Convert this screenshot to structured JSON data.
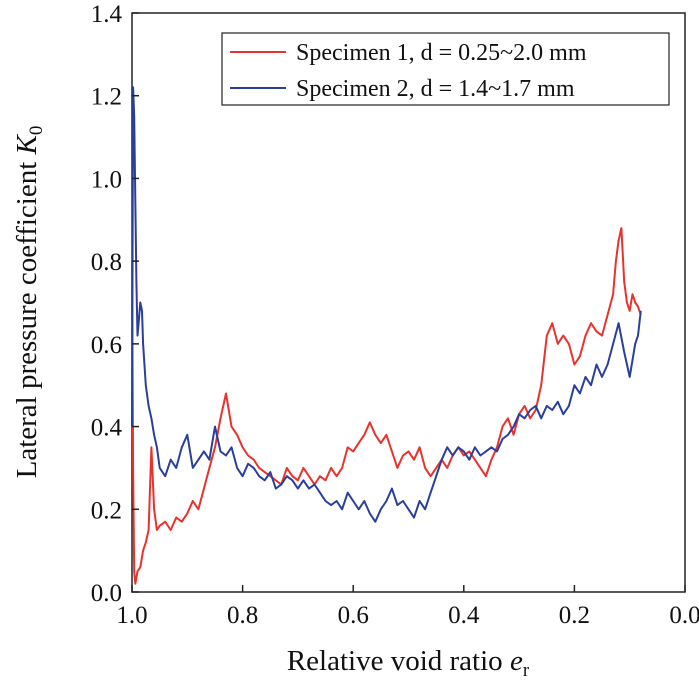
{
  "chart_data": {
    "type": "line",
    "title": "",
    "xlabel": "Relative void ratio",
    "xlabel_symbol": "e",
    "xlabel_subscript": "r",
    "ylabel": "Lateral pressure coefficient",
    "ylabel_symbol": "K",
    "ylabel_subscript": "0",
    "xlim": [
      1.0,
      0.0
    ],
    "ylim": [
      0.0,
      1.4
    ],
    "x_reversed": true,
    "grid": false,
    "legend_position": "top-right",
    "xticks": [
      1.0,
      0.8,
      0.6,
      0.4,
      0.2,
      0.0
    ],
    "xtick_labels": [
      "1.0",
      "0.8",
      "0.6",
      "0.4",
      "0.2",
      "0.0"
    ],
    "yticks": [
      0.0,
      0.2,
      0.4,
      0.6,
      0.8,
      1.0,
      1.2,
      1.4
    ],
    "ytick_labels": [
      "0.0",
      "0.2",
      "0.4",
      "0.6",
      "0.8",
      "1.0",
      "1.2",
      "1.4"
    ],
    "series": [
      {
        "name": "Specimen 1, d = 0.25~2.0 mm",
        "color": "#e8322d",
        "x": [
          1.0,
          0.998,
          0.996,
          0.994,
          0.99,
          0.985,
          0.98,
          0.975,
          0.97,
          0.965,
          0.96,
          0.955,
          0.95,
          0.94,
          0.93,
          0.92,
          0.91,
          0.9,
          0.89,
          0.88,
          0.87,
          0.86,
          0.85,
          0.84,
          0.83,
          0.82,
          0.81,
          0.8,
          0.79,
          0.78,
          0.77,
          0.76,
          0.75,
          0.74,
          0.73,
          0.72,
          0.71,
          0.7,
          0.69,
          0.68,
          0.67,
          0.66,
          0.65,
          0.64,
          0.63,
          0.62,
          0.61,
          0.6,
          0.59,
          0.58,
          0.57,
          0.56,
          0.55,
          0.54,
          0.53,
          0.52,
          0.51,
          0.5,
          0.49,
          0.48,
          0.47,
          0.46,
          0.45,
          0.44,
          0.43,
          0.42,
          0.41,
          0.4,
          0.39,
          0.38,
          0.37,
          0.36,
          0.35,
          0.34,
          0.33,
          0.32,
          0.31,
          0.3,
          0.29,
          0.28,
          0.27,
          0.26,
          0.25,
          0.24,
          0.23,
          0.22,
          0.21,
          0.2,
          0.19,
          0.18,
          0.17,
          0.16,
          0.15,
          0.14,
          0.13,
          0.125,
          0.12,
          0.115,
          0.11,
          0.105,
          0.1,
          0.095,
          0.09,
          0.085,
          0.08
        ],
        "values": [
          0.8,
          0.3,
          0.05,
          0.02,
          0.05,
          0.06,
          0.1,
          0.12,
          0.15,
          0.35,
          0.2,
          0.15,
          0.16,
          0.17,
          0.15,
          0.18,
          0.17,
          0.19,
          0.22,
          0.2,
          0.25,
          0.3,
          0.35,
          0.42,
          0.48,
          0.4,
          0.38,
          0.35,
          0.33,
          0.32,
          0.3,
          0.29,
          0.28,
          0.27,
          0.26,
          0.3,
          0.28,
          0.27,
          0.3,
          0.28,
          0.26,
          0.28,
          0.27,
          0.3,
          0.28,
          0.3,
          0.35,
          0.34,
          0.36,
          0.38,
          0.41,
          0.38,
          0.36,
          0.38,
          0.34,
          0.3,
          0.33,
          0.34,
          0.32,
          0.35,
          0.3,
          0.28,
          0.3,
          0.32,
          0.3,
          0.33,
          0.35,
          0.33,
          0.34,
          0.32,
          0.3,
          0.28,
          0.32,
          0.35,
          0.4,
          0.42,
          0.38,
          0.43,
          0.45,
          0.42,
          0.44,
          0.5,
          0.62,
          0.65,
          0.6,
          0.62,
          0.6,
          0.55,
          0.57,
          0.62,
          0.65,
          0.63,
          0.62,
          0.67,
          0.72,
          0.8,
          0.85,
          0.88,
          0.75,
          0.7,
          0.68,
          0.72,
          0.7,
          0.69,
          0.67
        ]
      },
      {
        "name": "Specimen 2, d = 1.4~1.7 mm",
        "color": "#2a3f9c",
        "x": [
          1.0,
          0.998,
          0.996,
          0.994,
          0.992,
          0.99,
          0.988,
          0.985,
          0.982,
          0.98,
          0.975,
          0.97,
          0.965,
          0.96,
          0.955,
          0.95,
          0.94,
          0.93,
          0.92,
          0.91,
          0.9,
          0.89,
          0.88,
          0.87,
          0.86,
          0.85,
          0.84,
          0.83,
          0.82,
          0.81,
          0.8,
          0.79,
          0.78,
          0.77,
          0.76,
          0.75,
          0.74,
          0.73,
          0.72,
          0.71,
          0.7,
          0.69,
          0.68,
          0.67,
          0.66,
          0.65,
          0.64,
          0.63,
          0.62,
          0.61,
          0.6,
          0.59,
          0.58,
          0.57,
          0.56,
          0.55,
          0.54,
          0.53,
          0.52,
          0.51,
          0.5,
          0.49,
          0.48,
          0.47,
          0.46,
          0.45,
          0.44,
          0.43,
          0.42,
          0.41,
          0.4,
          0.39,
          0.38,
          0.37,
          0.36,
          0.35,
          0.34,
          0.33,
          0.32,
          0.31,
          0.3,
          0.29,
          0.28,
          0.27,
          0.26,
          0.25,
          0.24,
          0.23,
          0.22,
          0.21,
          0.2,
          0.19,
          0.18,
          0.17,
          0.16,
          0.15,
          0.14,
          0.13,
          0.12,
          0.11,
          0.1,
          0.09,
          0.085,
          0.08
        ],
        "values": [
          0.4,
          1.22,
          1.15,
          0.95,
          0.75,
          0.62,
          0.65,
          0.7,
          0.68,
          0.6,
          0.5,
          0.45,
          0.42,
          0.38,
          0.35,
          0.3,
          0.28,
          0.32,
          0.3,
          0.35,
          0.38,
          0.3,
          0.32,
          0.34,
          0.32,
          0.4,
          0.34,
          0.33,
          0.35,
          0.3,
          0.28,
          0.31,
          0.3,
          0.28,
          0.27,
          0.29,
          0.25,
          0.26,
          0.28,
          0.27,
          0.25,
          0.27,
          0.25,
          0.26,
          0.24,
          0.22,
          0.21,
          0.22,
          0.2,
          0.24,
          0.22,
          0.2,
          0.22,
          0.19,
          0.17,
          0.2,
          0.22,
          0.25,
          0.21,
          0.22,
          0.2,
          0.18,
          0.22,
          0.2,
          0.24,
          0.28,
          0.32,
          0.35,
          0.33,
          0.35,
          0.34,
          0.32,
          0.35,
          0.33,
          0.34,
          0.35,
          0.34,
          0.37,
          0.38,
          0.4,
          0.43,
          0.42,
          0.44,
          0.45,
          0.42,
          0.45,
          0.44,
          0.46,
          0.43,
          0.45,
          0.5,
          0.48,
          0.52,
          0.5,
          0.55,
          0.52,
          0.55,
          0.6,
          0.65,
          0.58,
          0.52,
          0.6,
          0.62,
          0.68
        ]
      }
    ]
  }
}
